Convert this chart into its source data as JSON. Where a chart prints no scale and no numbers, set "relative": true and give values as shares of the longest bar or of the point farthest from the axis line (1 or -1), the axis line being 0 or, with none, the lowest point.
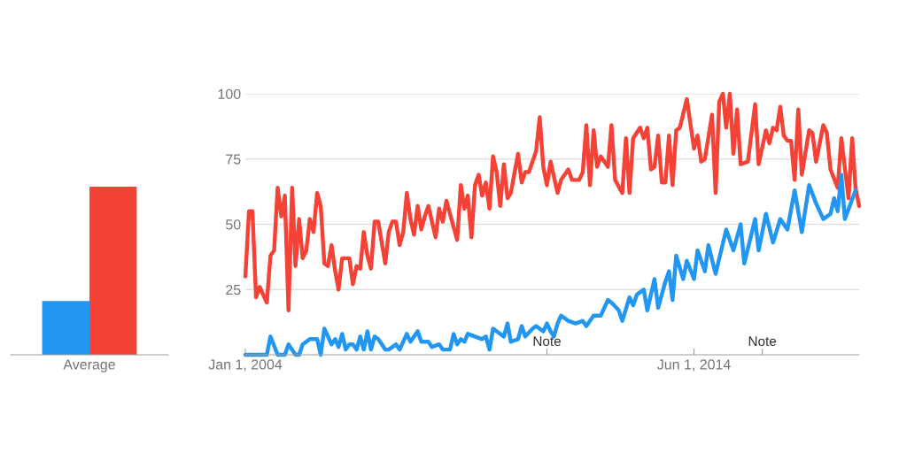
{
  "chart_data": [
    {
      "type": "bar",
      "categories": [
        "Average"
      ],
      "relative": true,
      "tick_labels": "x",
      "series": [
        {
          "color": "#2196f3",
          "values": [
            0.32
          ]
        },
        {
          "color": "#f44336",
          "values": [
            1
          ]
        }
      ]
    },
    {
      "type": "line",
      "xlim": [
        "2004-01",
        "2018-04"
      ],
      "ylim": [
        0,
        100
      ],
      "yticks": [
        25,
        50,
        75,
        100
      ],
      "xticks": [
        {
          "value": "2004-01-01",
          "label": "Jan 1, 2004"
        },
        {
          "value": "2011-01-01",
          "label": null
        },
        {
          "value": "2014-06-01",
          "label": "Jun 1, 2014"
        },
        {
          "value": "2016-01-01",
          "label": null
        }
      ],
      "grid": "y",
      "line_style": "solid",
      "annotations": [
        "Note",
        "Note"
      ],
      "series": [
        {
          "color": "#f44336",
          "x": [
            "2004-01",
            "2004-02",
            "2004-03",
            "2004-04",
            "2004-05",
            "2004-07",
            "2004-08",
            "2004-09",
            "2004-10",
            "2004-11",
            "2004-12",
            "2005-01",
            "2005-02",
            "2005-03",
            "2005-04",
            "2005-05",
            "2005-06",
            "2005-07",
            "2005-08",
            "2005-09",
            "2005-10",
            "2005-11",
            "2005-12",
            "2006-01",
            "2006-02",
            "2006-03",
            "2006-04",
            "2006-06",
            "2006-07",
            "2006-08",
            "2006-09",
            "2006-10",
            "2006-11",
            "2006-12",
            "2007-01",
            "2007-02",
            "2007-04",
            "2007-05",
            "2007-06",
            "2007-07",
            "2007-08",
            "2007-09",
            "2007-10",
            "2007-11",
            "2007-12",
            "2008-01",
            "2008-02",
            "2008-03",
            "2008-04",
            "2008-06",
            "2008-07",
            "2008-08",
            "2008-09",
            "2008-10",
            "2008-12",
            "2009-01",
            "2009-02",
            "2009-03",
            "2009-04",
            "2009-05",
            "2009-06",
            "2009-07",
            "2009-08",
            "2009-09",
            "2009-10",
            "2009-11",
            "2009-12",
            "2010-01",
            "2010-02",
            "2010-03",
            "2010-05",
            "2010-06",
            "2010-07",
            "2010-08",
            "2010-10",
            "2010-11",
            "2010-12",
            "2011-01",
            "2011-02",
            "2011-04",
            "2011-05",
            "2011-07",
            "2011-08",
            "2011-10",
            "2011-11",
            "2011-12",
            "2012-01",
            "2012-02",
            "2012-03",
            "2012-04",
            "2012-06",
            "2012-07",
            "2012-08",
            "2012-10",
            "2012-11",
            "2012-12",
            "2013-01",
            "2013-03",
            "2013-04",
            "2013-05",
            "2013-06",
            "2013-07",
            "2013-08",
            "2013-09",
            "2013-10",
            "2013-11",
            "2013-12",
            "2014-01",
            "2014-02",
            "2014-04",
            "2014-06",
            "2014-07",
            "2014-08",
            "2014-09",
            "2014-11",
            "2014-12",
            "2015-01",
            "2015-02",
            "2015-03",
            "2015-04",
            "2015-05",
            "2015-06",
            "2015-07",
            "2015-09",
            "2015-11",
            "2015-12",
            "2016-02",
            "2016-03",
            "2016-04",
            "2016-05",
            "2016-06",
            "2016-07",
            "2016-08",
            "2016-09",
            "2016-10",
            "2016-11",
            "2016-12",
            "2017-02",
            "2017-03",
            "2017-04",
            "2017-06",
            "2017-07",
            "2017-08",
            "2017-10",
            "2017-11",
            "2018-01",
            "2018-02",
            "2018-03",
            "2018-04"
          ],
          "values": [
            30,
            55,
            55,
            22,
            26,
            20,
            38,
            40,
            64,
            53,
            61,
            17,
            64,
            34,
            52,
            37,
            40,
            52,
            47,
            62,
            57,
            35,
            34,
            42,
            32,
            25,
            37,
            37,
            27,
            34,
            33,
            47,
            38,
            33,
            51,
            51,
            35,
            47,
            51,
            51,
            42,
            47,
            62,
            52,
            46,
            57,
            48,
            53,
            57,
            45,
            56,
            51,
            59,
            54,
            44,
            65,
            56,
            61,
            45,
            65,
            69,
            61,
            66,
            56,
            76,
            70,
            57,
            73,
            60,
            62,
            77,
            66,
            70,
            70,
            78,
            91,
            72,
            65,
            74,
            62,
            67,
            71,
            67,
            67,
            70,
            88,
            65,
            86,
            72,
            76,
            72,
            88,
            67,
            62,
            83,
            62,
            83,
            87,
            83,
            87,
            71,
            72,
            84,
            66,
            66,
            84,
            65,
            86,
            87,
            98,
            79,
            84,
            74,
            75,
            92,
            62,
            97,
            100,
            87,
            100,
            77,
            94,
            73,
            74,
            96,
            73,
            86,
            81,
            87,
            86,
            95,
            84,
            82,
            82,
            67,
            94,
            69,
            86,
            85,
            74,
            88,
            85,
            71,
            64,
            83,
            60,
            83,
            64,
            57
          ]
        },
        {
          "color": "#2196f3",
          "x": [
            "2004-01",
            "2004-07",
            "2004-08",
            "2004-10",
            "2004-12",
            "2005-01",
            "2005-03",
            "2005-04",
            "2005-05",
            "2005-07",
            "2005-09",
            "2005-10",
            "2005-11",
            "2006-01",
            "2006-02",
            "2006-03",
            "2006-04",
            "2006-05",
            "2006-06",
            "2006-07",
            "2006-08",
            "2006-09",
            "2006-10",
            "2006-11",
            "2006-12",
            "2007-01",
            "2007-02",
            "2007-04",
            "2007-05",
            "2007-07",
            "2007-08",
            "2007-10",
            "2007-11",
            "2008-01",
            "2008-02",
            "2008-04",
            "2008-05",
            "2008-07",
            "2008-08",
            "2008-10",
            "2008-11",
            "2008-12",
            "2009-01",
            "2009-02",
            "2009-03",
            "2009-05",
            "2009-07",
            "2009-08",
            "2009-09",
            "2009-10",
            "2010-01",
            "2010-02",
            "2010-03",
            "2010-05",
            "2010-06",
            "2010-07",
            "2010-09",
            "2010-10",
            "2010-12",
            "2011-01",
            "2011-02",
            "2011-03",
            "2011-04",
            "2011-05",
            "2011-07",
            "2011-09",
            "2011-11",
            "2011-12",
            "2012-02",
            "2012-04",
            "2012-06",
            "2012-07",
            "2012-09",
            "2012-10",
            "2012-12",
            "2013-01",
            "2013-02",
            "2013-04",
            "2013-05",
            "2013-07",
            "2013-08",
            "2013-10",
            "2013-11",
            "2013-12",
            "2014-01",
            "2014-03",
            "2014-04",
            "2014-06",
            "2014-07",
            "2014-09",
            "2014-10",
            "2014-12",
            "2015-03",
            "2015-05",
            "2015-07",
            "2015-08",
            "2015-11",
            "2015-12",
            "2016-02",
            "2016-04",
            "2016-06",
            "2016-08",
            "2016-10",
            "2016-12",
            "2017-02",
            "2017-04",
            "2017-06",
            "2017-08",
            "2017-09",
            "2017-10",
            "2017-11",
            "2017-12",
            "2018-03"
          ],
          "values": [
            0,
            0,
            7,
            0,
            0,
            4,
            0,
            0,
            4,
            6,
            6,
            0,
            10,
            4,
            6,
            3,
            8,
            2,
            4,
            4,
            2,
            7,
            2,
            9,
            2,
            7,
            6,
            2,
            2,
            4,
            2,
            8,
            5,
            9,
            5,
            5,
            3,
            4,
            2,
            2,
            8,
            4,
            6,
            5,
            8,
            7,
            6,
            7,
            2,
            10,
            7,
            12,
            5,
            6,
            11,
            7,
            10,
            11,
            9,
            12,
            9,
            7,
            12,
            15,
            13,
            12,
            13,
            11,
            15,
            15,
            21,
            20,
            17,
            13,
            22,
            19,
            23,
            25,
            17,
            29,
            18,
            28,
            32,
            21,
            38,
            29,
            36,
            29,
            40,
            32,
            42,
            31,
            48,
            40,
            50,
            35,
            52,
            40,
            54,
            43,
            52,
            48,
            63,
            47,
            65,
            58,
            52,
            54,
            60,
            55,
            69,
            52,
            63
          ]
        }
      ]
    }
  ]
}
